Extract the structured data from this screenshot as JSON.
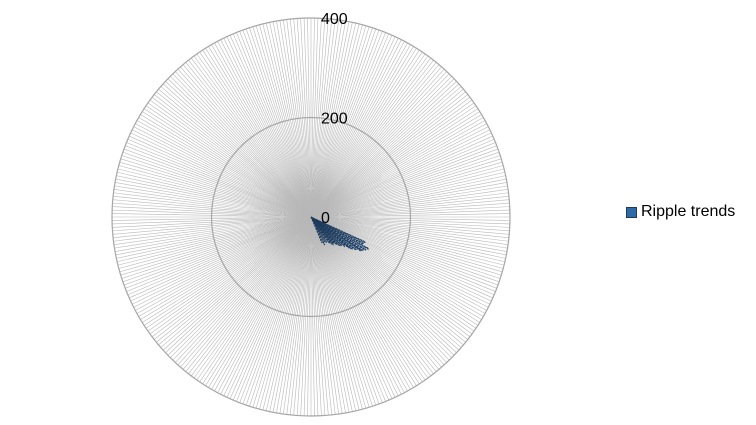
{
  "chart_data": {
    "type": "polar-bar",
    "title": "",
    "radial_axis": {
      "range": [
        0,
        400
      ],
      "ticks": [
        0,
        200,
        400
      ],
      "tick_labels": [
        "0",
        "200",
        "400"
      ],
      "grid": true
    },
    "angular_axis": {
      "category_count": 360,
      "grid": true
    },
    "series": [
      {
        "name": "Ripple trends",
        "color": "#2e6aa8",
        "points": [
          {
            "angle_deg": 115,
            "value": 120
          },
          {
            "angle_deg": 117,
            "value": 118
          },
          {
            "angle_deg": 119,
            "value": 132
          },
          {
            "angle_deg": 121,
            "value": 128
          },
          {
            "angle_deg": 123,
            "value": 124
          },
          {
            "angle_deg": 124,
            "value": 120
          },
          {
            "angle_deg": 126,
            "value": 112
          },
          {
            "angle_deg": 128,
            "value": 105
          },
          {
            "angle_deg": 129,
            "value": 98
          },
          {
            "angle_deg": 131,
            "value": 90
          },
          {
            "angle_deg": 133,
            "value": 84
          },
          {
            "angle_deg": 135,
            "value": 82
          },
          {
            "angle_deg": 137,
            "value": 76
          },
          {
            "angle_deg": 139,
            "value": 70
          },
          {
            "angle_deg": 141,
            "value": 72
          },
          {
            "angle_deg": 143,
            "value": 68
          },
          {
            "angle_deg": 145,
            "value": 64
          },
          {
            "angle_deg": 148,
            "value": 60
          },
          {
            "angle_deg": 151,
            "value": 58
          },
          {
            "angle_deg": 154,
            "value": 62
          },
          {
            "angle_deg": 157,
            "value": 56
          }
        ]
      }
    ],
    "legend": {
      "position": "right"
    }
  }
}
